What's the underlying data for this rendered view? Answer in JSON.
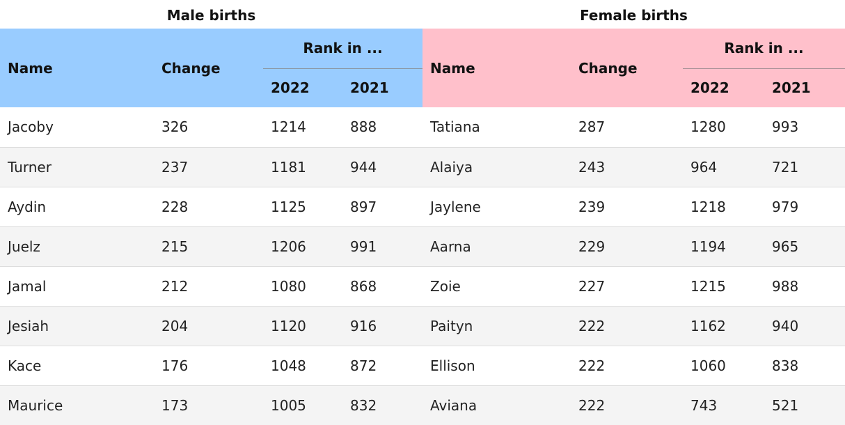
{
  "male": {
    "caption": "Male births",
    "headers": {
      "name": "Name",
      "change": "Change",
      "rank_group": "Rank in ...",
      "year_a": "2022",
      "year_b": "2021"
    },
    "rows": [
      {
        "name": "Jacoby",
        "change": "326",
        "rank_2022": "1214",
        "rank_2021": "888"
      },
      {
        "name": "Turner",
        "change": "237",
        "rank_2022": "1181",
        "rank_2021": "944"
      },
      {
        "name": "Aydin",
        "change": "228",
        "rank_2022": "1125",
        "rank_2021": "897"
      },
      {
        "name": "Juelz",
        "change": "215",
        "rank_2022": "1206",
        "rank_2021": "991"
      },
      {
        "name": "Jamal",
        "change": "212",
        "rank_2022": "1080",
        "rank_2021": "868"
      },
      {
        "name": "Jesiah",
        "change": "204",
        "rank_2022": "1120",
        "rank_2021": "916"
      },
      {
        "name": "Kace",
        "change": "176",
        "rank_2022": "1048",
        "rank_2021": "872"
      },
      {
        "name": "Maurice",
        "change": "173",
        "rank_2022": "1005",
        "rank_2021": "832"
      }
    ]
  },
  "female": {
    "caption": "Female births",
    "headers": {
      "name": "Name",
      "change": "Change",
      "rank_group": "Rank in ...",
      "year_a": "2022",
      "year_b": "2021"
    },
    "rows": [
      {
        "name": "Tatiana",
        "change": "287",
        "rank_2022": "1280",
        "rank_2021": "993"
      },
      {
        "name": "Alaiya",
        "change": "243",
        "rank_2022": "964",
        "rank_2021": "721"
      },
      {
        "name": "Jaylene",
        "change": "239",
        "rank_2022": "1218",
        "rank_2021": "979"
      },
      {
        "name": "Aarna",
        "change": "229",
        "rank_2022": "1194",
        "rank_2021": "965"
      },
      {
        "name": "Zoie",
        "change": "227",
        "rank_2022": "1215",
        "rank_2021": "988"
      },
      {
        "name": "Paityn",
        "change": "222",
        "rank_2022": "1162",
        "rank_2021": "940"
      },
      {
        "name": "Ellison",
        "change": "222",
        "rank_2022": "1060",
        "rank_2021": "838"
      },
      {
        "name": "Aviana",
        "change": "222",
        "rank_2022": "743",
        "rank_2021": "521"
      }
    ]
  },
  "colors": {
    "male_header": "#99ccff",
    "female_header": "#ffc0cb",
    "stripe": "#f4f4f4"
  }
}
